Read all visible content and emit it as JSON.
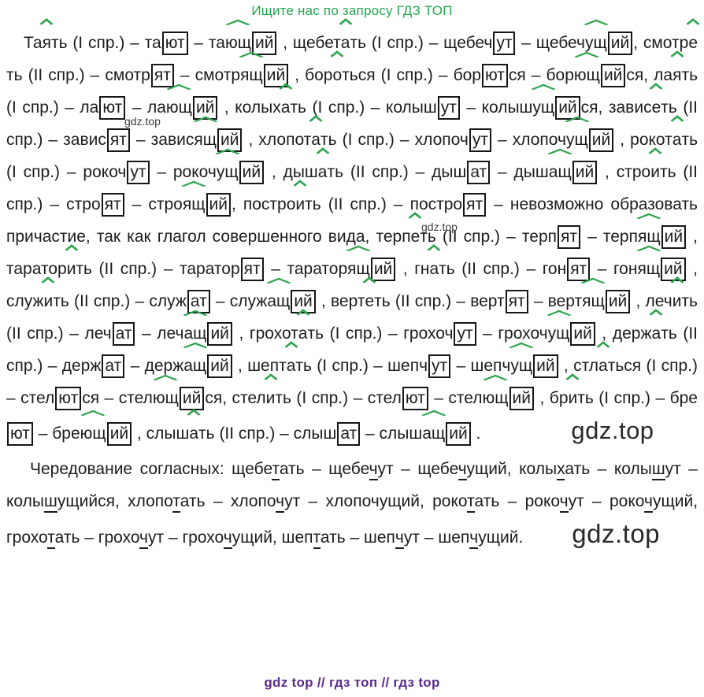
{
  "header": {
    "text": "Ищите нас по запросу ГДЗ ТОП"
  },
  "footer": {
    "text": "gdz top  //  гдз топ  //  гдз top"
  },
  "watermarks": {
    "small": "gdz.top",
    "large": "gdz.top"
  },
  "colors": {
    "accent_green": "#2ea44f",
    "header_green": "#23a94f",
    "footer_purple": "#5b2b8f",
    "text": "#1c1c1c",
    "watermark": "#2a2a2a"
  },
  "segment_styles": {
    "": "plain text",
    "a": "green circumflex over verb suffix",
    "h": "wide green circumflex over participle suffix",
    "b": "boxed ending",
    "u": "underlined alternating consonant",
    "w": "large inline watermark",
    "w2": "large inline watermark (second)"
  },
  "paragraphs": [
    {
      "name": "conjugations",
      "segments": [
        [
          "",
          "Та"
        ],
        [
          "a",
          "я"
        ],
        [
          "",
          "ть (I спр.) – та"
        ],
        [
          "b",
          "ют"
        ],
        [
          "",
          " – та"
        ],
        [
          "h",
          "ющ"
        ],
        [
          "b",
          "ий"
        ],
        [
          "",
          " , щебет"
        ],
        [
          "a",
          "а"
        ],
        [
          "",
          "ть (I спр.) – щебеч"
        ],
        [
          "b",
          "ут"
        ],
        [
          "",
          " – щебеч"
        ],
        [
          "h",
          "ущ"
        ],
        [
          "b",
          "ий"
        ],
        [
          "",
          ", смотр"
        ],
        [
          "a",
          "е"
        ],
        [
          "",
          "ть (II спр.) – смотр"
        ],
        [
          "b",
          "ят"
        ],
        [
          "",
          " – смотр"
        ],
        [
          "h",
          "ящ"
        ],
        [
          "b",
          "ий"
        ],
        [
          "",
          " , бор"
        ],
        [
          "a",
          "о"
        ],
        [
          "",
          "ться (I спр.) – бор"
        ],
        [
          "b",
          "ют"
        ],
        [
          "",
          "ся – бор"
        ],
        [
          "h",
          "ющ"
        ],
        [
          "b",
          "ий"
        ],
        [
          "",
          "ся, ла"
        ],
        [
          "a",
          "я"
        ],
        [
          "",
          "ть (I спр.) – ла"
        ],
        [
          "b",
          "ют"
        ],
        [
          "",
          " – ла"
        ],
        [
          "h",
          "ющ"
        ],
        [
          "b",
          "ий"
        ],
        [
          "",
          " , колых"
        ],
        [
          "a",
          "а"
        ],
        [
          "",
          "ть (I спр.) – колыш"
        ],
        [
          "b",
          "ут"
        ],
        [
          "",
          " – колыш"
        ],
        [
          "h",
          "ущ"
        ],
        [
          "b",
          "ий"
        ],
        [
          "",
          "ся, завис"
        ],
        [
          "a",
          "е"
        ],
        [
          "",
          "ть (II спр.) – завис"
        ],
        [
          "b",
          "ят"
        ],
        [
          "",
          " – завис"
        ],
        [
          "h",
          "ящ"
        ],
        [
          "b",
          "ий"
        ],
        [
          "",
          " , хлопот"
        ],
        [
          "a",
          "а"
        ],
        [
          "",
          "ть (I спр.) – хлопоч"
        ],
        [
          "b",
          "ут"
        ],
        [
          "",
          " – хлопоч"
        ],
        [
          "h",
          "ущ"
        ],
        [
          "b",
          "ий"
        ],
        [
          "",
          " , рокот"
        ],
        [
          "a",
          "а"
        ],
        [
          "",
          "ть (I спр.) – рокоч"
        ],
        [
          "b",
          "ут"
        ],
        [
          "",
          " – рокоч"
        ],
        [
          "h",
          "ущ"
        ],
        [
          "b",
          "ий"
        ],
        [
          "",
          " , дыш"
        ],
        [
          "a",
          "а"
        ],
        [
          "",
          "ть (II спр.) – дыш"
        ],
        [
          "b",
          "ат"
        ],
        [
          "",
          " – дыш"
        ],
        [
          "h",
          "ащ"
        ],
        [
          "b",
          "ий"
        ],
        [
          "",
          " , стро"
        ],
        [
          "a",
          "и"
        ],
        [
          "",
          "ть (II спр.) – стро"
        ],
        [
          "b",
          "ят"
        ],
        [
          "",
          " – стро"
        ],
        [
          "h",
          "ящ"
        ],
        [
          "b",
          "ий"
        ],
        [
          "",
          ", постро"
        ],
        [
          "a",
          "и"
        ],
        [
          "",
          "ть (II спр.) – постро"
        ],
        [
          "b",
          "ят"
        ],
        [
          "",
          " – невозможно образовать причастие, так как глагол совершенного вида, терп"
        ],
        [
          "a",
          "е"
        ],
        [
          "",
          "ть (II спр.) – терп"
        ],
        [
          "b",
          "ят"
        ],
        [
          "",
          " – терп"
        ],
        [
          "h",
          "ящ"
        ],
        [
          "b",
          "ий"
        ],
        [
          "",
          " , таратор"
        ],
        [
          "a",
          "и"
        ],
        [
          "",
          "ть (II спр.) – таратор"
        ],
        [
          "b",
          "ят"
        ],
        [
          "",
          " – таратор"
        ],
        [
          "h",
          "ящ"
        ],
        [
          "b",
          "ий"
        ],
        [
          "",
          " , гн"
        ],
        [
          "a",
          "а"
        ],
        [
          "",
          "ть (II спр.) – гон"
        ],
        [
          "b",
          "ят"
        ],
        [
          "",
          " – гон"
        ],
        [
          "h",
          "ящ"
        ],
        [
          "b",
          "ий"
        ],
        [
          "",
          " , служ"
        ],
        [
          "a",
          "и"
        ],
        [
          "",
          "ть (II спр.) – служ"
        ],
        [
          "b",
          "ат"
        ],
        [
          "",
          " – служ"
        ],
        [
          "h",
          "ащ"
        ],
        [
          "b",
          "ий"
        ],
        [
          "",
          " , верт"
        ],
        [
          "a",
          "е"
        ],
        [
          "",
          "ть (II спр.) – верт"
        ],
        [
          "b",
          "ят"
        ],
        [
          "",
          " – верт"
        ],
        [
          "h",
          "ящ"
        ],
        [
          "b",
          "ий"
        ],
        [
          "",
          " , леч"
        ],
        [
          "a",
          "и"
        ],
        [
          "",
          "ть (II спр.) – леч"
        ],
        [
          "b",
          "ат"
        ],
        [
          "",
          " – леч"
        ],
        [
          "h",
          "ащ"
        ],
        [
          "b",
          "ий"
        ],
        [
          "",
          " , грохот"
        ],
        [
          "a",
          "а"
        ],
        [
          "",
          "ть (I спр.) – грохоч"
        ],
        [
          "b",
          "ут"
        ],
        [
          "",
          " – грохоч"
        ],
        [
          "h",
          "ущ"
        ],
        [
          "b",
          "ий"
        ],
        [
          "",
          " , держ"
        ],
        [
          "a",
          "а"
        ],
        [
          "",
          "ть (II спр.) – держ"
        ],
        [
          "b",
          "ат"
        ],
        [
          "",
          " – держ"
        ],
        [
          "h",
          "ащ"
        ],
        [
          "b",
          "ий"
        ],
        [
          "",
          " , шепт"
        ],
        [
          "a",
          "а"
        ],
        [
          "",
          "ть (I спр.) – шепч"
        ],
        [
          "b",
          "ут"
        ],
        [
          "",
          " – шепч"
        ],
        [
          "h",
          "ущ"
        ],
        [
          "b",
          "ий"
        ],
        [
          "",
          " , стл"
        ],
        [
          "a",
          "а"
        ],
        [
          "",
          "ться (I спр.) – стел"
        ],
        [
          "b",
          "ют"
        ],
        [
          "",
          "ся – стел"
        ],
        [
          "h",
          "ющ"
        ],
        [
          "b",
          "ий"
        ],
        [
          "",
          "ся, стел"
        ],
        [
          "a",
          "и"
        ],
        [
          "",
          "ть (I спр.) – стел"
        ],
        [
          "b",
          "ют"
        ],
        [
          "",
          " – стел"
        ],
        [
          "h",
          "ющ"
        ],
        [
          "b",
          "ий"
        ],
        [
          "",
          " , бр"
        ],
        [
          "a",
          "и"
        ],
        [
          "",
          "ть (I спр.) – бре"
        ],
        [
          "b",
          "ют"
        ],
        [
          "",
          " – бре"
        ],
        [
          "h",
          "ющ"
        ],
        [
          "b",
          "ий"
        ],
        [
          "",
          " , слыш"
        ],
        [
          "a",
          "а"
        ],
        [
          "",
          "ть (II спр.) – слыш"
        ],
        [
          "b",
          "ат"
        ],
        [
          "",
          " – слыш"
        ],
        [
          "h",
          "ащ"
        ],
        [
          "b",
          "ий"
        ],
        [
          "",
          " ."
        ],
        [
          "w",
          "gdz.top"
        ]
      ]
    },
    {
      "name": "alternations",
      "segments": [
        [
          "",
          "Чередование согласных: щебе"
        ],
        [
          "u",
          "т"
        ],
        [
          "",
          "ать – щебе"
        ],
        [
          "u",
          "ч"
        ],
        [
          "",
          "ут – щебе"
        ],
        [
          "u",
          "ч"
        ],
        [
          "",
          "ущий, колы"
        ],
        [
          "u",
          "х"
        ],
        [
          "",
          "ать – колы"
        ],
        [
          "u",
          "ш"
        ],
        [
          "",
          "ут – колы"
        ],
        [
          "u",
          "ш"
        ],
        [
          "",
          "ущийся, хлопо"
        ],
        [
          "u",
          "т"
        ],
        [
          "",
          "ать – хлопо"
        ],
        [
          "u",
          "ч"
        ],
        [
          "",
          "ут – хлопочущий, роко"
        ],
        [
          "u",
          "т"
        ],
        [
          "",
          "ать – роко"
        ],
        [
          "u",
          "ч"
        ],
        [
          "",
          "ут – роко"
        ],
        [
          "u",
          "ч"
        ],
        [
          "",
          "ущий, грохо"
        ],
        [
          "u",
          "т"
        ],
        [
          "",
          "ать – грохо"
        ],
        [
          "u",
          "ч"
        ],
        [
          "",
          "ут – грохо"
        ],
        [
          "u",
          "ч"
        ],
        [
          "",
          "ущий, шеп"
        ],
        [
          "u",
          "т"
        ],
        [
          "",
          "ать – шеп"
        ],
        [
          "u",
          "ч"
        ],
        [
          "",
          "ут – шеп"
        ],
        [
          "u",
          "ч"
        ],
        [
          "",
          "ущий."
        ],
        [
          "w2",
          "gdz.top"
        ]
      ]
    }
  ]
}
